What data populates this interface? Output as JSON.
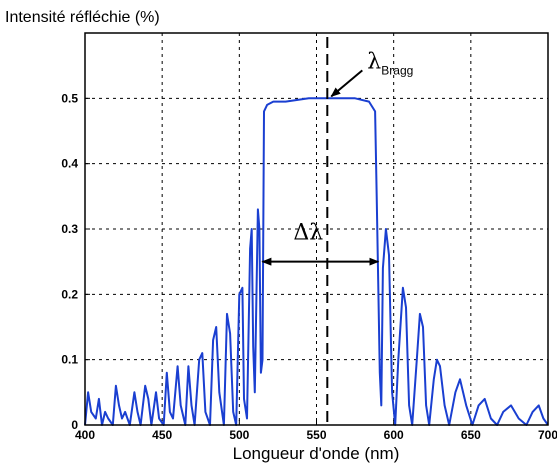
{
  "chart_data": {
    "type": "line",
    "title": "Intensité réfléchie (%)",
    "xlabel": "Longueur d'onde (nm)",
    "ylabel": "",
    "xlim": [
      400,
      700
    ],
    "ylim": [
      0,
      0.6
    ],
    "xticks": [
      "400",
      "450",
      "500",
      "550",
      "600",
      "650",
      "700"
    ],
    "yticks": [
      "0",
      "0.1",
      "0.2",
      "0.3",
      "0.4",
      "0.5"
    ],
    "grid": true,
    "line_color": "#1a3fd1",
    "annotations": {
      "bragg_symbol": "λ",
      "bragg_subscript": "Bragg",
      "bragg_wavelength": 557,
      "bragg_reflectance": 0.5,
      "delta_lambda_label": "Δλ",
      "delta_lambda_range": [
        513,
        592
      ],
      "delta_lambda_level": 0.25
    },
    "series": [
      {
        "values": [
          [
            400,
            0.0
          ],
          [
            402,
            0.05
          ],
          [
            404,
            0.02
          ],
          [
            407,
            0.01
          ],
          [
            409,
            0.04
          ],
          [
            411,
            0.0
          ],
          [
            413,
            0.02
          ],
          [
            415,
            0.01
          ],
          [
            418,
            0.0
          ],
          [
            420,
            0.06
          ],
          [
            422,
            0.03
          ],
          [
            424,
            0.01
          ],
          [
            426,
            0.02
          ],
          [
            429,
            0.0
          ],
          [
            432,
            0.05
          ],
          [
            434,
            0.02
          ],
          [
            436,
            0.0
          ],
          [
            439,
            0.06
          ],
          [
            441,
            0.04
          ],
          [
            443,
            0.0
          ],
          [
            446,
            0.05
          ],
          [
            448,
            0.01
          ],
          [
            451,
            0.0
          ],
          [
            453,
            0.08
          ],
          [
            455,
            0.02
          ],
          [
            457,
            0.01
          ],
          [
            460,
            0.09
          ],
          [
            462,
            0.03
          ],
          [
            465,
            0.0
          ],
          [
            467,
            0.09
          ],
          [
            469,
            0.03
          ],
          [
            471,
            0.0
          ],
          [
            474,
            0.1
          ],
          [
            476,
            0.11
          ],
          [
            478,
            0.02
          ],
          [
            481,
            0.0
          ],
          [
            483,
            0.13
          ],
          [
            485,
            0.15
          ],
          [
            487,
            0.05
          ],
          [
            490,
            0.0
          ],
          [
            492,
            0.17
          ],
          [
            494,
            0.14
          ],
          [
            496,
            0.02
          ],
          [
            498,
            0.0
          ],
          [
            500,
            0.2
          ],
          [
            502,
            0.21
          ],
          [
            503,
            0.04
          ],
          [
            505,
            0.01
          ],
          [
            507,
            0.27
          ],
          [
            508,
            0.3
          ],
          [
            509,
            0.12
          ],
          [
            510,
            0.05
          ],
          [
            512,
            0.33
          ],
          [
            513,
            0.3
          ],
          [
            514,
            0.08
          ],
          [
            515,
            0.1
          ],
          [
            516,
            0.48
          ],
          [
            518,
            0.49
          ],
          [
            522,
            0.495
          ],
          [
            530,
            0.495
          ],
          [
            545,
            0.5
          ],
          [
            560,
            0.5
          ],
          [
            575,
            0.5
          ],
          [
            584,
            0.495
          ],
          [
            588,
            0.48
          ],
          [
            589,
            0.35
          ],
          [
            590,
            0.22
          ],
          [
            591,
            0.08
          ],
          [
            592,
            0.03
          ],
          [
            593,
            0.24
          ],
          [
            595,
            0.3
          ],
          [
            597,
            0.26
          ],
          [
            599,
            0.05
          ],
          [
            601,
            0.0
          ],
          [
            603,
            0.1
          ],
          [
            606,
            0.21
          ],
          [
            608,
            0.18
          ],
          [
            610,
            0.03
          ],
          [
            612,
            0.0
          ],
          [
            615,
            0.1
          ],
          [
            617,
            0.17
          ],
          [
            619,
            0.15
          ],
          [
            621,
            0.03
          ],
          [
            623,
            0.0
          ],
          [
            626,
            0.07
          ],
          [
            628,
            0.1
          ],
          [
            630,
            0.09
          ],
          [
            633,
            0.03
          ],
          [
            636,
            0.0
          ],
          [
            640,
            0.05
          ],
          [
            643,
            0.07
          ],
          [
            647,
            0.03
          ],
          [
            651,
            0.0
          ],
          [
            655,
            0.03
          ],
          [
            659,
            0.04
          ],
          [
            663,
            0.01
          ],
          [
            667,
            0.0
          ],
          [
            671,
            0.02
          ],
          [
            676,
            0.03
          ],
          [
            681,
            0.01
          ],
          [
            686,
            0.0
          ],
          [
            690,
            0.02
          ],
          [
            694,
            0.03
          ],
          [
            697,
            0.01
          ],
          [
            700,
            0.0
          ]
        ]
      }
    ]
  }
}
